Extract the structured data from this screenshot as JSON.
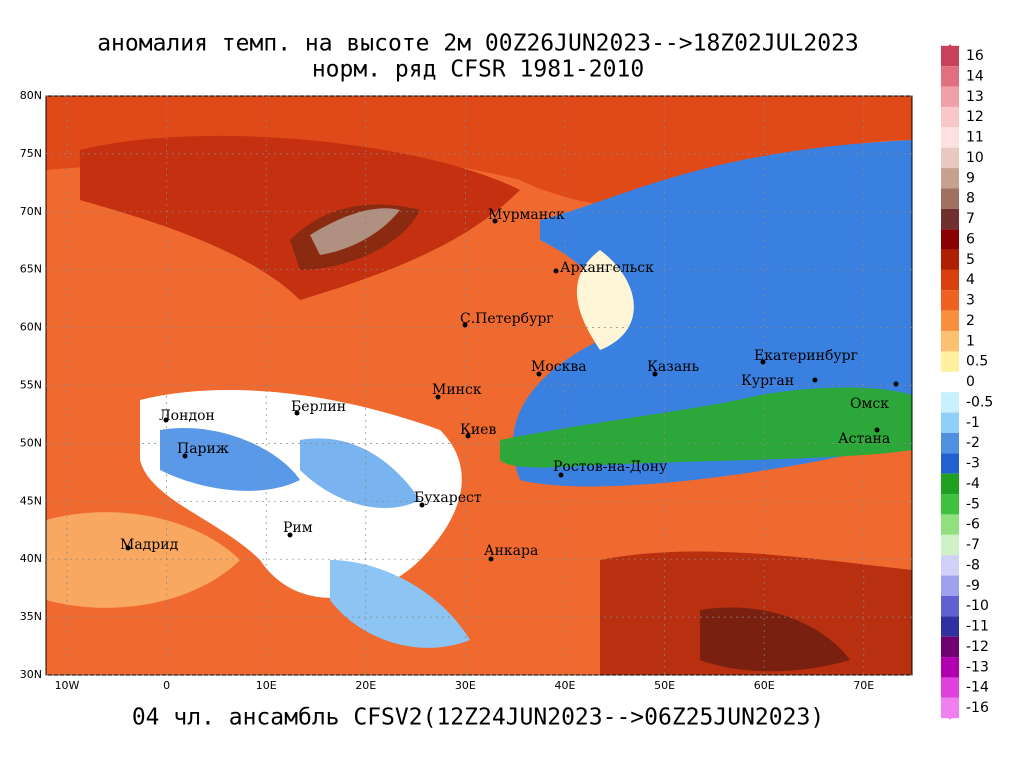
{
  "map": {
    "title": "аномалия темп. на высоте 2м 00Z26JUN2023-->18Z02JUL2023",
    "subtitle": "норм. ряд CFSR 1981-2010",
    "footer": "04 чл. ансамбль CFSV2(12Z24JUN2023-->06Z25JUN2023)",
    "lon_labels": [
      "10W",
      "0",
      "10E",
      "20E",
      "30E",
      "40E",
      "50E",
      "60E",
      "70E"
    ],
    "lat_labels": [
      "80N",
      "75N",
      "70N",
      "65N",
      "60N",
      "55N",
      "50N",
      "45N",
      "40N",
      "35N",
      "30N"
    ],
    "cities": [
      "Мурманск",
      "Архангельск",
      "С.Петербург",
      "Москва",
      "Казань",
      "Екатеринбург",
      "Курган",
      "Омск",
      "Астана",
      "Минск",
      "Берлин",
      "Лондон",
      "Париж",
      "Киев",
      "Ростов-на-Дону",
      "Бухарест",
      "Рим",
      "Мадрид",
      "Анкара"
    ],
    "colorbar": {
      "levels": [
        16,
        14,
        13,
        12,
        11,
        10,
        9,
        8,
        7,
        6,
        5,
        4,
        3,
        2,
        1,
        0.5,
        0,
        -0.5,
        -1,
        -2,
        -3,
        -4,
        -5,
        -6,
        -7,
        -8,
        -9,
        -10,
        -11,
        -12,
        -13,
        -14,
        -16
      ],
      "colors": [
        "#c8405a",
        "#e07080",
        "#f0a0a8",
        "#f8c8c8",
        "#fde0e0",
        "#e8c8c0",
        "#c8a090",
        "#a07060",
        "#703030",
        "#8b0000",
        "#b02000",
        "#d84010",
        "#f06020",
        "#f89040",
        "#fbc070",
        "#fff0a0",
        "#ffffff",
        "#c8f0ff",
        "#90d0f8",
        "#5090e0",
        "#2060d0",
        "#20a020",
        "#40c040",
        "#90e080",
        "#d0f0c8",
        "#d0d0f8",
        "#a0a0f0",
        "#6060d0",
        "#3030a0",
        "#700070",
        "#b000b0",
        "#e040e0",
        "#f080f0"
      ]
    }
  }
}
